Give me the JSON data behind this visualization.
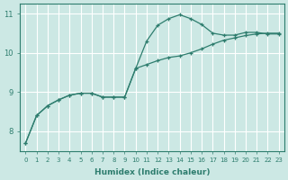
{
  "x": [
    0,
    1,
    2,
    3,
    4,
    5,
    6,
    7,
    8,
    9,
    10,
    11,
    12,
    13,
    14,
    15,
    16,
    17,
    18,
    19,
    20,
    21,
    22,
    23
  ],
  "line1_y": [
    7.7,
    8.4,
    8.65,
    8.8,
    8.92,
    8.97,
    8.97,
    8.87,
    8.87,
    8.87,
    9.6,
    10.3,
    10.7,
    10.87,
    10.97,
    10.87,
    10.72,
    10.5,
    10.45,
    10.45,
    10.52,
    10.52,
    10.48,
    10.48
  ],
  "line2_y": [
    7.7,
    8.4,
    8.65,
    8.8,
    8.92,
    8.97,
    8.97,
    8.87,
    8.87,
    8.87,
    9.6,
    9.7,
    9.8,
    9.88,
    9.92,
    10.0,
    10.1,
    10.22,
    10.32,
    10.38,
    10.44,
    10.48,
    10.5,
    10.5
  ],
  "line_color": "#2e7d6e",
  "bg_color": "#cce8e4",
  "grid_color": "#ffffff",
  "xlabel": "Humidex (Indice chaleur)",
  "ylim": [
    7.5,
    11.25
  ],
  "xlim": [
    -0.5,
    23.5
  ],
  "yticks": [
    8,
    9,
    10,
    11
  ],
  "xticks": [
    0,
    1,
    2,
    3,
    4,
    5,
    6,
    7,
    8,
    9,
    10,
    11,
    12,
    13,
    14,
    15,
    16,
    17,
    18,
    19,
    20,
    21,
    22,
    23
  ]
}
